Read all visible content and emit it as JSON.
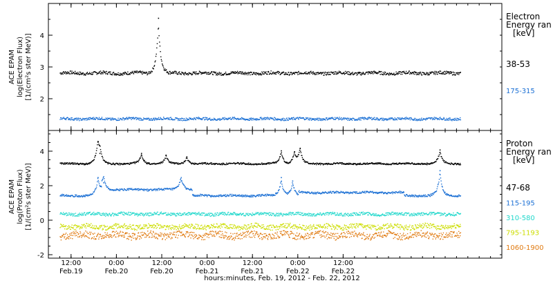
{
  "chart_data": [
    {
      "type": "scatter",
      "panel": "electron",
      "ylabel": [
        "ACE EPAM",
        "log(Electron Flux)",
        "[1/(cm²s ster MeV)]"
      ],
      "ylim": [
        1.0,
        5.0
      ],
      "yticks": [
        2,
        3,
        4
      ],
      "legend_title": [
        "Electron",
        "Energy ran",
        "[keV]"
      ],
      "series": [
        {
          "name": "38-53",
          "color": "#000000",
          "base": 2.82,
          "noise": 0.05,
          "spikes": [
            {
              "x": 35.0,
              "y": 4.55
            }
          ]
        },
        {
          "name": "175-315",
          "color": "#1a6fd4",
          "base": 1.38,
          "noise": 0.04,
          "spikes": []
        }
      ]
    },
    {
      "type": "scatter",
      "panel": "proton",
      "ylabel": [
        "ACE EPAM",
        "log(Proton Flux)",
        "[1/(cm²s ster MeV)]"
      ],
      "ylim": [
        -2.2,
        5.2
      ],
      "yticks": [
        -2,
        0,
        2,
        4
      ],
      "legend_title": [
        "Proton",
        "Energy ran",
        "[keV]"
      ],
      "series": [
        {
          "name": "47-68",
          "color": "#000000",
          "base": 3.3,
          "noise": 0.05,
          "spikes": [
            {
              "x": 19.0,
              "y": 4.55
            },
            {
              "x": 19.5,
              "y": 3.9
            },
            {
              "x": 30.5,
              "y": 3.9
            },
            {
              "x": 37.0,
              "y": 3.8
            },
            {
              "x": 42.5,
              "y": 3.7
            },
            {
              "x": 67.5,
              "y": 4.05
            },
            {
              "x": 71.0,
              "y": 4.0
            },
            {
              "x": 72.5,
              "y": 4.2
            },
            {
              "x": 109.5,
              "y": 4.1
            }
          ]
        },
        {
          "name": "115-195",
          "color": "#1a6fd4",
          "base": 1.45,
          "noise": 0.06,
          "spikes": [
            {
              "x": 19.0,
              "y": 2.5
            },
            {
              "x": 20.5,
              "y": 2.2
            },
            {
              "x": 41.0,
              "y": 2.3
            },
            {
              "x": 67.5,
              "y": 2.5
            },
            {
              "x": 70.5,
              "y": 2.3
            },
            {
              "x": 109.5,
              "y": 2.9
            }
          ]
        },
        {
          "name": "310-580",
          "color": "#22d8cc",
          "base": 0.38,
          "noise": 0.09,
          "spikes": []
        },
        {
          "name": "795-1193",
          "color": "#ccdd00",
          "base": -0.35,
          "noise": 0.15,
          "spikes": []
        },
        {
          "name": "1060-1900",
          "color": "#e07a10",
          "base": -0.85,
          "noise": 0.2,
          "spikes": []
        }
      ]
    }
  ],
  "x_axis": {
    "xlabel": "hours:minutes, Feb. 19, 2012 - Feb. 22, 2012",
    "xlim_hours": [
      6,
      126
    ],
    "data_range_hours": [
      9.0,
      115.0
    ],
    "ticks": [
      {
        "hours": 12,
        "time": "12:00",
        "date": "Feb.19"
      },
      {
        "hours": 24,
        "time": "0:00",
        "date": "Feb.20"
      },
      {
        "hours": 36,
        "time": "12:00",
        "date": "Feb.20"
      },
      {
        "hours": 48,
        "time": "0:00",
        "date": "Feb.21"
      },
      {
        "hours": 60,
        "time": "12:00",
        "date": "Feb.21"
      },
      {
        "hours": 72,
        "time": "0:00",
        "date": "Feb.22"
      },
      {
        "hours": 84,
        "time": "12:00",
        "date": "Feb.22"
      }
    ]
  }
}
